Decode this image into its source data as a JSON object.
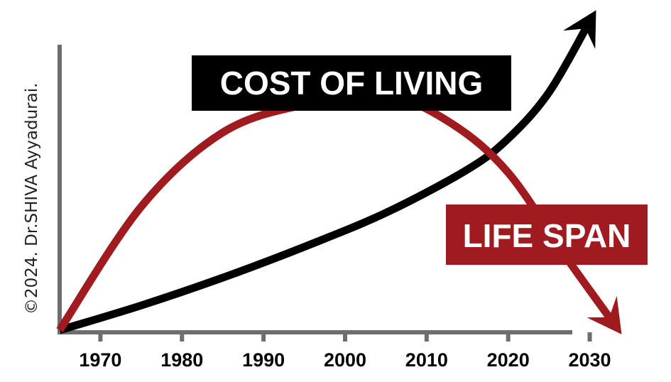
{
  "credit": "©2024. Dr.SHIVA Ayyadurai.",
  "chart_data": {
    "type": "line",
    "x_ticks": [
      "1970",
      "1980",
      "1990",
      "2000",
      "2010",
      "2020",
      "2030"
    ],
    "xlim": [
      1965,
      2033
    ],
    "ylim": [
      0,
      100
    ],
    "grid": false,
    "series": [
      {
        "name": "COST OF LIVING",
        "color": "#000000",
        "label_bg": "#000000",
        "x": [
          1965,
          1975,
          1985,
          1995,
          2005,
          2015,
          2020,
          2025,
          2030
        ],
        "y": [
          0,
          8,
          17,
          27,
          38,
          52,
          62,
          77,
          100
        ]
      },
      {
        "name": "LIFE SPAN",
        "color": "#a01b20",
        "label_bg": "#a01b20",
        "x": [
          1965,
          1975,
          1985,
          1995,
          2005,
          2013,
          2020,
          2027,
          2033
        ],
        "y": [
          0,
          40,
          64,
          73,
          76,
          67,
          51,
          24,
          2
        ]
      }
    ]
  }
}
